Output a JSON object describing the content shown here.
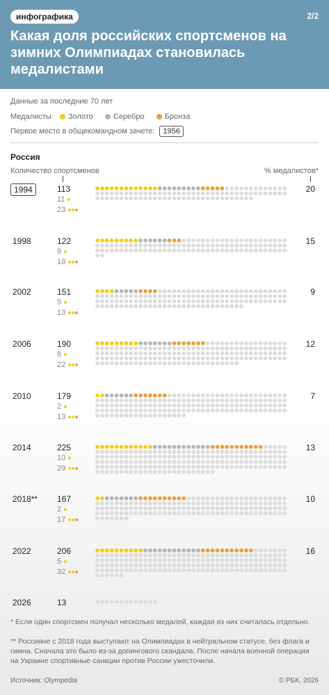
{
  "header": {
    "tag": "инфографика",
    "page": "2/2",
    "title": "Какая доля российских спортсменов на зимних Олимпиадах становилась медалистами"
  },
  "legend": {
    "period": "Данные за последние 70 лет",
    "medalists_label": "Медалисты:",
    "gold": "Золото",
    "silver": "Серебро",
    "bronze": "Бронза",
    "first_place_label": "Первое место в общекомандном зачете:",
    "first_place_year": "1956"
  },
  "colors": {
    "gold": "#f2cd1c",
    "silver": "#b5b5b5",
    "bronze": "#e5a23c",
    "none": "#dcdcdc",
    "header": "#6c9ab4"
  },
  "chart_data": {
    "type": "dot-matrix",
    "country": "Россия",
    "x_label": "Количество спортсменов",
    "pct_label": "% медалистов*",
    "rows": [
      {
        "year": "1994",
        "first_place": true,
        "athletes": 113,
        "single_medalists": 11,
        "multi_medalists": 23,
        "gold": 13,
        "silver": 9,
        "bronze": 5,
        "pct": 20
      },
      {
        "year": "1998",
        "athletes": 122,
        "single_medalists": 9,
        "multi_medalists": 18,
        "gold": 9,
        "silver": 6,
        "bronze": 3,
        "pct": 15
      },
      {
        "year": "2002",
        "athletes": 151,
        "single_medalists": 5,
        "multi_medalists": 13,
        "gold": 4,
        "silver": 5,
        "bronze": 4,
        "pct": 9
      },
      {
        "year": "2006",
        "athletes": 190,
        "single_medalists": 8,
        "multi_medalists": 22,
        "gold": 9,
        "silver": 7,
        "bronze": 7,
        "pct": 12
      },
      {
        "year": "2010",
        "athletes": 179,
        "single_medalists": 2,
        "multi_medalists": 13,
        "gold": 2,
        "silver": 6,
        "bronze": 7,
        "pct": 7
      },
      {
        "year": "2014",
        "athletes": 225,
        "single_medalists": 10,
        "multi_medalists": 29,
        "gold": 12,
        "silver": 12,
        "bronze": 11,
        "pct": 13
      },
      {
        "year": "2018**",
        "athletes": 167,
        "single_medalists": 2,
        "multi_medalists": 17,
        "gold": 2,
        "silver": 7,
        "bronze": 10,
        "pct": 10
      },
      {
        "year": "2022",
        "athletes": 206,
        "single_medalists": 5,
        "multi_medalists": 32,
        "gold": 10,
        "silver": 12,
        "bronze": 11,
        "pct": 16
      },
      {
        "year": "2026",
        "athletes": 13,
        "single_medalists": null,
        "multi_medalists": null,
        "gold": 0,
        "silver": 0,
        "bronze": 0,
        "pct": null
      }
    ]
  },
  "footnotes": {
    "note1": "* Если один спортсмен получал несколько медалей, каждая из них считалась отдельно.",
    "note2": "** Россияне с 2018 года выступают на Олимпиадах в нейтральном статусе, без флага и гимна. Сначала это было из-за допингового скандала. После начала военной операции на Украине спортивные санкции против России ужесточили."
  },
  "source": "Источник: Olympedia",
  "copyright": "© РБК, 2026"
}
